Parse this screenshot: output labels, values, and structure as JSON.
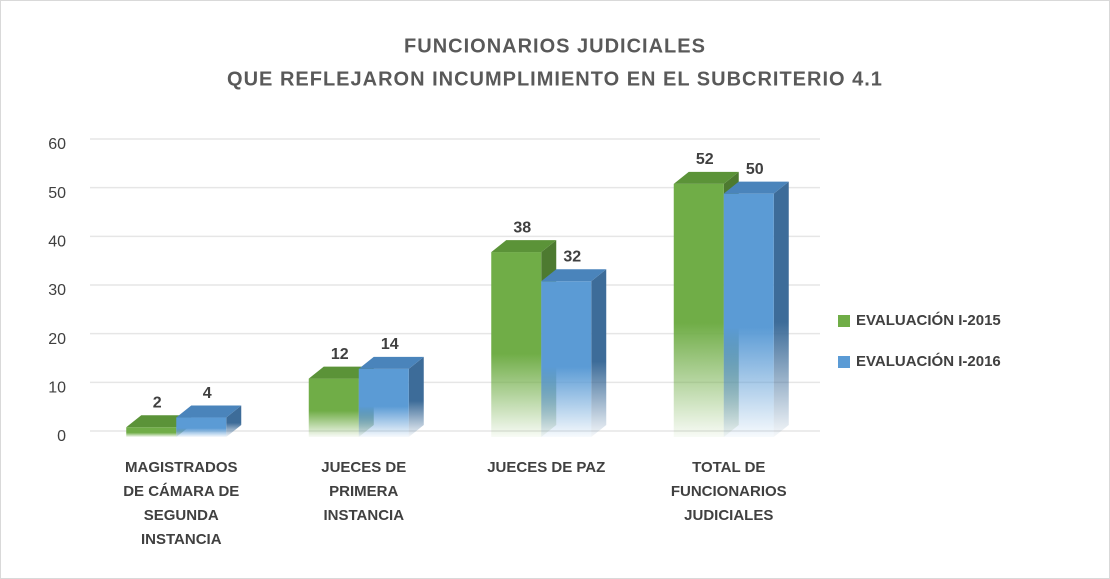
{
  "chart_data": {
    "type": "bar3d",
    "title": "FUNCIONARIOS JUDICIALES",
    "subtitle": "QUE REFLEJARON INCUMPLIMIENTO EN EL SUBCRITERIO 4.1",
    "categories": [
      [
        "MAGISTRADOS",
        "DE CÁMARA DE",
        "SEGUNDA",
        "INSTANCIA"
      ],
      [
        "JUECES DE",
        "PRIMERA",
        "INSTANCIA"
      ],
      [
        "JUECES DE PAZ"
      ],
      [
        "TOTAL DE",
        "FUNCIONARIOS",
        "JUDICIALES"
      ]
    ],
    "series": [
      {
        "name": "EVALUACIÓN I-2015",
        "color": "#70ad47",
        "side": "#4d7a30",
        "top": "#5b9338",
        "values": [
          2,
          12,
          38,
          52
        ]
      },
      {
        "name": "EVALUACIÓN I-2016",
        "color": "#5b9bd5",
        "side": "#3d6c99",
        "top": "#4a84bb",
        "values": [
          4,
          14,
          32,
          50
        ]
      }
    ],
    "ylim": [
      0,
      60
    ],
    "yticks": [
      0,
      10,
      20,
      30,
      40,
      50,
      60
    ],
    "grid": true,
    "legend": "right"
  }
}
